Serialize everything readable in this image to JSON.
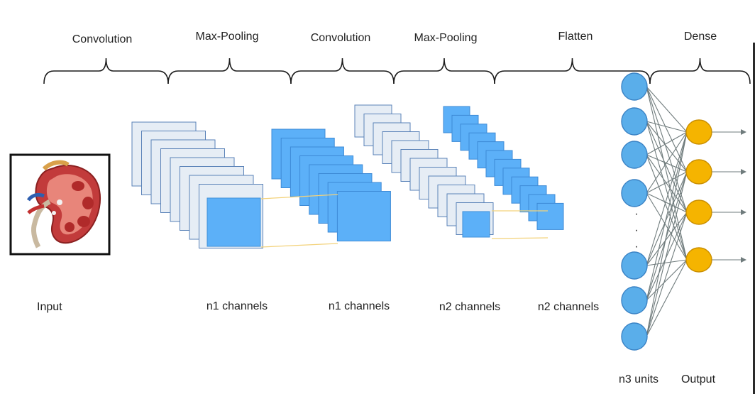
{
  "stages": {
    "conv1": "Convolution",
    "pool1": "Max-Pooling",
    "conv2": "Convolution",
    "pool2": "Max-Pooling",
    "flatten": "Flatten",
    "dense": "Dense"
  },
  "bottom": {
    "input": "Input",
    "n1_a": "n1 channels",
    "n1_b": "n1 channels",
    "n2_a": "n2 channels",
    "n2_b": "n2 channels",
    "n3": "n3 units",
    "output": "Output"
  },
  "input_image": {
    "icon": "kidney-icon"
  },
  "dots": "·",
  "colors": {
    "map_light": "#e6edf5",
    "map_blue": "#5cb0f8",
    "neuron_blue": "#5aaeea",
    "neuron_orange": "#f5b400",
    "edge": "#6f7b7c",
    "guide": "#f3d27a",
    "text": "#222222"
  }
}
